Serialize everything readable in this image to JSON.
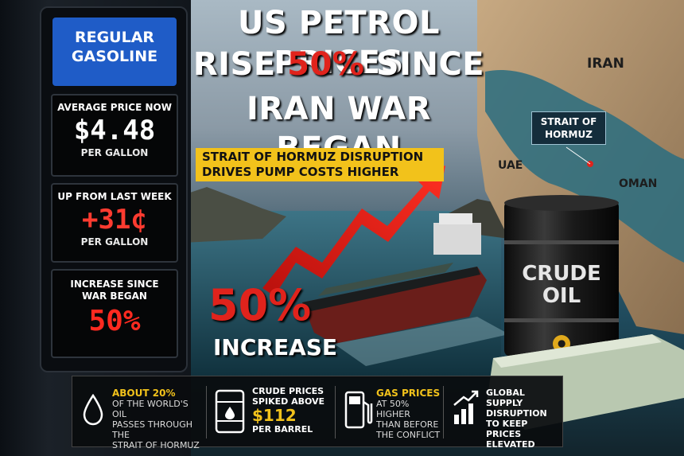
{
  "headline": {
    "line1": "US PETROL PRICES",
    "line2_pre": "RISE ",
    "line2_pct": "50%",
    "line2_post": " SINCE",
    "line3": "IRAN WAR BEGAN"
  },
  "subhead": {
    "line1": "STRAIT OF HORMUZ DISRUPTION",
    "line2": "DRIVES PUMP COSTS HIGHER"
  },
  "pump": {
    "label_line1": "REGULAR",
    "label_line2": "GASOLINE",
    "panels": [
      {
        "caption": "AVERAGE PRICE NOW",
        "value": "$4.48",
        "unit": "PER GALLON",
        "color": "#ffffff"
      },
      {
        "caption": "UP FROM LAST WEEK",
        "value": "+31¢",
        "unit": "PER GALLON",
        "color": "#ff3b30"
      },
      {
        "caption_line1": "INCREASE SINCE",
        "caption_line2": "WAR BEGAN",
        "value": "50%",
        "color": "#ff2a20"
      }
    ]
  },
  "map_labels": {
    "iran": "IRAN",
    "strait_line1": "STRAIT OF",
    "strait_line2": "HORMUZ",
    "uae": "UAE",
    "oman": "OMAN"
  },
  "barrel": {
    "line1": "CRUDE",
    "line2": "OIL"
  },
  "increase": {
    "pct": "50%",
    "word": "INCREASE"
  },
  "info_items": [
    {
      "icon": "oil-drop-icon",
      "highlight": "ABOUT 20%",
      "lines": [
        "OF THE WORLD'S OIL",
        "PASSES THROUGH THE",
        "STRAIT OF HORMUZ"
      ],
      "highlight_color": "#f2c21b"
    },
    {
      "icon": "oil-barrel-icon",
      "lines_top": [
        "CRUDE PRICES",
        "SPIKED ABOVE"
      ],
      "highlight": "$112",
      "line_bottom": "PER BARREL",
      "highlight_color": "#f2c21b"
    },
    {
      "icon": "gas-pump-icon",
      "highlight": "GAS PRICES",
      "lines": [
        "AT 50% HIGHER",
        "THAN BEFORE",
        "THE CONFLICT"
      ],
      "highlight_color": "#f2c21b"
    },
    {
      "icon": "rising-chart-icon",
      "lines": [
        "GLOBAL SUPPLY",
        "DISRUPTION",
        "TO KEEP PRICES",
        "ELEVATED"
      ]
    }
  ]
}
